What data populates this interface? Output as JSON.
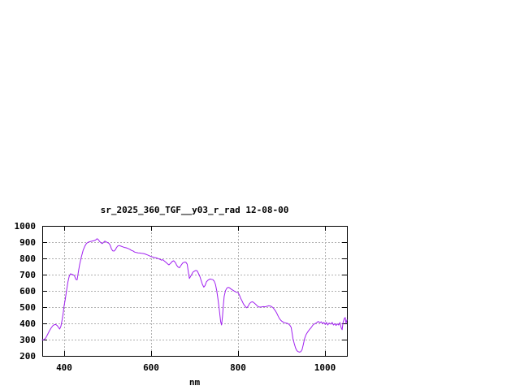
{
  "page": {
    "background": "#ffffff"
  },
  "chart_data": {
    "type": "line",
    "title": "sr_2025_360_TGF__y03_r_rad 12-08-00",
    "xlabel": "nm",
    "ylabel": "",
    "xlim": [
      350,
      1050
    ],
    "ylim": [
      200,
      1000
    ],
    "x_ticks": [
      400,
      600,
      800,
      1000
    ],
    "y_ticks": [
      200,
      300,
      400,
      500,
      600,
      700,
      800,
      900,
      1000
    ],
    "grid": true,
    "legend": "none",
    "colors": {
      "line": "#a020f0",
      "grid": "#b0b0b0",
      "border": "#000000",
      "text": "#000000",
      "background": "#ffffff"
    },
    "series": [
      {
        "name": "sr_2025_360_TGF__y03_r_rad",
        "points": [
          [
            350,
            298
          ],
          [
            354,
            300
          ],
          [
            358,
            310
          ],
          [
            362,
            330
          ],
          [
            366,
            352
          ],
          [
            370,
            370
          ],
          [
            374,
            385
          ],
          [
            378,
            392
          ],
          [
            381,
            393
          ],
          [
            384,
            387
          ],
          [
            387,
            377
          ],
          [
            390,
            365
          ],
          [
            393,
            383
          ],
          [
            396,
            425
          ],
          [
            398,
            460
          ],
          [
            400,
            505
          ],
          [
            403,
            550
          ],
          [
            406,
            605
          ],
          [
            409,
            655
          ],
          [
            412,
            690
          ],
          [
            415,
            705
          ],
          [
            418,
            702
          ],
          [
            421,
            699
          ],
          [
            424,
            694
          ],
          [
            427,
            671
          ],
          [
            430,
            668
          ],
          [
            433,
            718
          ],
          [
            436,
            764
          ],
          [
            440,
            810
          ],
          [
            444,
            851
          ],
          [
            448,
            876
          ],
          [
            452,
            893
          ],
          [
            456,
            900
          ],
          [
            460,
            903
          ],
          [
            464,
            906
          ],
          [
            468,
            908
          ],
          [
            472,
            912
          ],
          [
            476,
            921
          ],
          [
            479,
            915
          ],
          [
            482,
            903
          ],
          [
            485,
            896
          ],
          [
            488,
            891
          ],
          [
            491,
            899
          ],
          [
            494,
            906
          ],
          [
            497,
            901
          ],
          [
            500,
            897
          ],
          [
            503,
            893
          ],
          [
            506,
            881
          ],
          [
            509,
            858
          ],
          [
            512,
            846
          ],
          [
            515,
            845
          ],
          [
            518,
            853
          ],
          [
            521,
            868
          ],
          [
            524,
            877
          ],
          [
            527,
            879
          ],
          [
            531,
            875
          ],
          [
            535,
            871
          ],
          [
            539,
            867
          ],
          [
            543,
            865
          ],
          [
            547,
            861
          ],
          [
            551,
            856
          ],
          [
            555,
            849
          ],
          [
            559,
            845
          ],
          [
            562,
            839
          ],
          [
            566,
            836
          ],
          [
            570,
            834
          ],
          [
            574,
            833
          ],
          [
            578,
            831
          ],
          [
            582,
            830
          ],
          [
            585,
            828
          ],
          [
            588,
            825
          ],
          [
            592,
            821
          ],
          [
            596,
            816
          ],
          [
            600,
            811
          ],
          [
            604,
            808
          ],
          [
            608,
            805
          ],
          [
            612,
            803
          ],
          [
            616,
            799
          ],
          [
            620,
            795
          ],
          [
            624,
            789
          ],
          [
            627,
            792
          ],
          [
            630,
            785
          ],
          [
            634,
            776
          ],
          [
            638,
            766
          ],
          [
            641,
            760
          ],
          [
            645,
            770
          ],
          [
            649,
            782
          ],
          [
            652,
            785
          ],
          [
            656,
            774
          ],
          [
            659,
            757
          ],
          [
            662,
            747
          ],
          [
            665,
            742
          ],
          [
            669,
            758
          ],
          [
            673,
            772
          ],
          [
            677,
            777
          ],
          [
            680,
            776
          ],
          [
            683,
            764
          ],
          [
            686,
            710
          ],
          [
            688,
            676
          ],
          [
            690,
            685
          ],
          [
            693,
            700
          ],
          [
            696,
            715
          ],
          [
            700,
            722
          ],
          [
            703,
            726
          ],
          [
            706,
            723
          ],
          [
            709,
            707
          ],
          [
            712,
            690
          ],
          [
            715,
            665
          ],
          [
            718,
            640
          ],
          [
            721,
            623
          ],
          [
            724,
            633
          ],
          [
            727,
            655
          ],
          [
            730,
            664
          ],
          [
            733,
            670
          ],
          [
            736,
            673
          ],
          [
            739,
            671
          ],
          [
            742,
            669
          ],
          [
            745,
            660
          ],
          [
            748,
            640
          ],
          [
            751,
            600
          ],
          [
            754,
            545
          ],
          [
            757,
            480
          ],
          [
            760,
            410
          ],
          [
            762,
            390
          ],
          [
            764,
            441
          ],
          [
            766,
            512
          ],
          [
            768,
            566
          ],
          [
            771,
            601
          ],
          [
            774,
            616
          ],
          [
            777,
            622
          ],
          [
            780,
            619
          ],
          [
            784,
            611
          ],
          [
            788,
            604
          ],
          [
            792,
            597
          ],
          [
            796,
            592
          ],
          [
            800,
            589
          ],
          [
            803,
            574
          ],
          [
            806,
            553
          ],
          [
            809,
            538
          ],
          [
            812,
            521
          ],
          [
            815,
            509
          ],
          [
            818,
            500
          ],
          [
            820,
            496
          ],
          [
            823,
            506
          ],
          [
            826,
            521
          ],
          [
            829,
            529
          ],
          [
            832,
            533
          ],
          [
            835,
            530
          ],
          [
            838,
            523
          ],
          [
            841,
            516
          ],
          [
            844,
            507
          ],
          [
            847,
            502
          ],
          [
            850,
            500
          ],
          [
            854,
            501
          ],
          [
            858,
            503
          ],
          [
            862,
            502
          ],
          [
            866,
            505
          ],
          [
            870,
            508
          ],
          [
            874,
            507
          ],
          [
            877,
            503
          ],
          [
            880,
            497
          ],
          [
            883,
            487
          ],
          [
            886,
            476
          ],
          [
            889,
            461
          ],
          [
            892,
            444
          ],
          [
            895,
            429
          ],
          [
            898,
            419
          ],
          [
            901,
            412
          ],
          [
            904,
            407
          ],
          [
            907,
            404
          ],
          [
            910,
            402
          ],
          [
            913,
            400
          ],
          [
            916,
            396
          ],
          [
            919,
            388
          ],
          [
            922,
            375
          ],
          [
            924,
            340
          ],
          [
            926,
            305
          ],
          [
            929,
            275
          ],
          [
            932,
            248
          ],
          [
            935,
            232
          ],
          [
            938,
            226
          ],
          [
            941,
            223
          ],
          [
            944,
            226
          ],
          [
            947,
            238
          ],
          [
            950,
            272
          ],
          [
            953,
            308
          ],
          [
            956,
            330
          ],
          [
            960,
            348
          ],
          [
            964,
            362
          ],
          [
            968,
            375
          ],
          [
            972,
            390
          ],
          [
            976,
            398
          ],
          [
            980,
            403
          ],
          [
            984,
            412
          ],
          [
            988,
            404
          ],
          [
            991,
            410
          ],
          [
            994,
            398
          ],
          [
            997,
            406
          ],
          [
            1000,
            394
          ],
          [
            1003,
            406
          ],
          [
            1006,
            390
          ],
          [
            1009,
            402
          ],
          [
            1013,
            395
          ],
          [
            1016,
            406
          ],
          [
            1019,
            390
          ],
          [
            1022,
            398
          ],
          [
            1025,
            387
          ],
          [
            1028,
            397
          ],
          [
            1031,
            390
          ],
          [
            1034,
            405
          ],
          [
            1037,
            372
          ],
          [
            1039,
            361
          ],
          [
            1041,
            405
          ],
          [
            1044,
            430
          ],
          [
            1046,
            436
          ],
          [
            1048,
            400
          ],
          [
            1050,
            422
          ]
        ]
      }
    ]
  }
}
